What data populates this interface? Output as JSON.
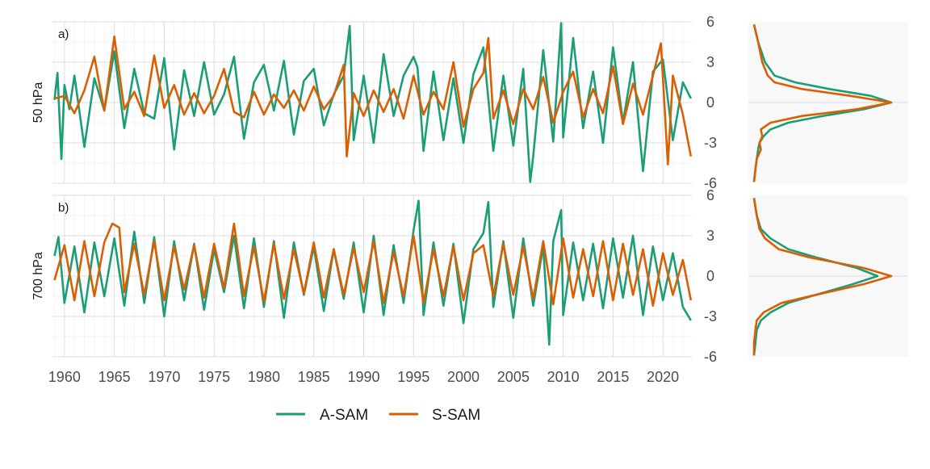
{
  "chart_data": {
    "type": "line",
    "panels": [
      {
        "tag": "a)",
        "ylabel": "50 hPa",
        "ylim": [
          -6,
          6
        ],
        "yticks": [
          "6",
          "3",
          "0",
          "-3",
          "-6"
        ],
        "series": [
          {
            "name": "A-SAM",
            "color": "#1b9e77",
            "x": [
              1959.0,
              1959.3,
              1959.7,
              1960.0,
              1960.5,
              1961.0,
              1962.0,
              1963.0,
              1964.0,
              1965.0,
              1966.0,
              1967.0,
              1968.0,
              1969.0,
              1970.0,
              1971.0,
              1972.0,
              1973.0,
              1974.0,
              1975.0,
              1976.0,
              1977.0,
              1978.0,
              1979.0,
              1980.0,
              1981.0,
              1982.0,
              1983.0,
              1984.0,
              1985.0,
              1986.0,
              1987.0,
              1988.0,
              1988.6,
              1989.0,
              1990.0,
              1991.0,
              1992.0,
              1993.0,
              1994.0,
              1995.0,
              1995.4,
              1996.0,
              1997.0,
              1998.0,
              1999.0,
              2000.0,
              2001.0,
              2002.0,
              2003.0,
              2004.0,
              2005.0,
              2006.0,
              2006.7,
              2007.0,
              2008.0,
              2009.0,
              2009.8,
              2010.0,
              2011.0,
              2012.0,
              2013.0,
              2014.0,
              2015.0,
              2016.0,
              2017.0,
              2018.0,
              2019.0,
              2020.0,
              2021.0,
              2022.0,
              2022.8
            ],
            "y": [
              0.2,
              2.2,
              -4.2,
              1.3,
              -0.5,
              2.0,
              -3.3,
              1.8,
              -0.6,
              3.8,
              -1.9,
              2.5,
              -0.8,
              -1.2,
              3.3,
              -3.5,
              2.4,
              -1.0,
              3.0,
              -0.9,
              0.6,
              3.4,
              -2.7,
              1.5,
              2.8,
              -0.6,
              3.1,
              -2.4,
              1.6,
              2.5,
              -1.7,
              0.6,
              2.0,
              5.7,
              -2.8,
              2.0,
              -3.0,
              3.6,
              -1.0,
              2.0,
              3.4,
              2.6,
              -3.6,
              2.3,
              -2.8,
              1.8,
              -3.0,
              2.1,
              4.1,
              -3.6,
              2.0,
              -3.2,
              2.5,
              -5.9,
              -4.0,
              3.9,
              -2.9,
              5.9,
              -2.6,
              4.8,
              -1.9,
              2.3,
              -3.0,
              4.1,
              -1.5,
              3.0,
              -5.1,
              2.3,
              3.2,
              -2.8,
              1.5,
              0.3
            ]
          },
          {
            "name": "S-SAM",
            "color": "#d95f02",
            "x": [
              1959.0,
              1960.0,
              1961.0,
              1962.0,
              1963.0,
              1964.0,
              1965.0,
              1966.0,
              1967.0,
              1968.0,
              1969.0,
              1970.0,
              1971.0,
              1972.0,
              1973.0,
              1974.0,
              1975.0,
              1976.0,
              1977.0,
              1978.0,
              1979.0,
              1980.0,
              1981.0,
              1982.0,
              1983.0,
              1984.0,
              1985.0,
              1986.0,
              1987.0,
              1988.0,
              1988.3,
              1989.0,
              1990.0,
              1991.0,
              1992.0,
              1993.0,
              1994.0,
              1995.0,
              1996.0,
              1997.0,
              1998.0,
              1999.0,
              2000.0,
              2001.0,
              2002.0,
              2002.5,
              2003.0,
              2004.0,
              2005.0,
              2006.0,
              2007.0,
              2008.0,
              2009.0,
              2010.0,
              2011.0,
              2012.0,
              2013.0,
              2014.0,
              2015.0,
              2016.0,
              2017.0,
              2018.0,
              2019.0,
              2019.8,
              2020.5,
              2021.0,
              2022.0,
              2022.8
            ],
            "y": [
              0.3,
              0.5,
              -0.8,
              0.9,
              3.4,
              -0.6,
              4.9,
              -0.5,
              0.8,
              -1.0,
              3.5,
              -0.4,
              1.3,
              -0.9,
              0.7,
              -0.8,
              0.5,
              2.5,
              -0.7,
              -1.1,
              0.8,
              -0.9,
              0.6,
              -0.4,
              0.9,
              -0.6,
              1.2,
              -0.5,
              0.5,
              2.8,
              -4.0,
              0.7,
              -1.0,
              0.9,
              -0.7,
              1.0,
              -1.2,
              2.0,
              -0.9,
              0.8,
              -0.5,
              3.0,
              -1.8,
              1.0,
              2.2,
              4.8,
              -1.2,
              0.9,
              -1.6,
              1.0,
              -0.5,
              1.9,
              -1.5,
              0.8,
              2.3,
              -1.1,
              1.0,
              -0.8,
              2.7,
              -1.6,
              1.4,
              -0.9,
              2.0,
              4.4,
              -4.6,
              2.0,
              -0.9,
              -4.0
            ]
          }
        ],
        "density": [
          {
            "name": "A-SAM",
            "x": [
              0.0,
              0.03,
              0.08,
              0.15,
              0.3,
              0.55,
              0.85,
              1.0,
              0.8,
              0.5,
              0.25,
              0.12,
              0.07,
              0.04,
              0.03,
              0.02,
              0.01,
              0.0
            ],
            "y": [
              5.8,
              4.5,
              3.0,
              2.0,
              1.5,
              1.0,
              0.5,
              0.0,
              -0.5,
              -1.0,
              -1.5,
              -2.0,
              -2.5,
              -3.0,
              -3.5,
              -4.2,
              -5.0,
              -5.9
            ]
          },
          {
            "name": "S-SAM",
            "x": [
              0.0,
              0.03,
              0.06,
              0.1,
              0.15,
              0.35,
              0.7,
              1.0,
              0.75,
              0.35,
              0.12,
              0.05,
              0.06,
              0.04,
              0.05,
              0.02,
              0.01,
              0.0
            ],
            "y": [
              5.8,
              4.5,
              3.0,
              2.0,
              1.5,
              1.0,
              0.5,
              0.0,
              -0.5,
              -1.0,
              -1.5,
              -2.0,
              -2.5,
              -3.0,
              -3.5,
              -4.2,
              -5.0,
              -5.9
            ]
          }
        ]
      },
      {
        "tag": "b)",
        "ylabel": "700 hPa",
        "ylim": [
          -6,
          6
        ],
        "yticks": [
          "6",
          "3",
          "0",
          "-3",
          "-6"
        ],
        "series": [
          {
            "name": "A-SAM",
            "color": "#1b9e77",
            "x": [
              1959.0,
              1959.4,
              1960.0,
              1961.0,
              1962.0,
              1963.0,
              1964.0,
              1965.0,
              1966.0,
              1967.0,
              1968.0,
              1969.0,
              1970.0,
              1971.0,
              1972.0,
              1973.0,
              1974.0,
              1975.0,
              1976.0,
              1977.0,
              1978.0,
              1979.0,
              1980.0,
              1981.0,
              1982.0,
              1983.0,
              1984.0,
              1985.0,
              1986.0,
              1987.0,
              1988.0,
              1989.0,
              1990.0,
              1991.0,
              1992.0,
              1993.0,
              1994.0,
              1995.0,
              1995.5,
              1996.0,
              1997.0,
              1998.0,
              1999.0,
              2000.0,
              2001.0,
              2002.0,
              2002.5,
              2003.0,
              2004.0,
              2005.0,
              2006.0,
              2007.0,
              2008.0,
              2008.6,
              2009.0,
              2009.8,
              2010.0,
              2011.0,
              2012.0,
              2013.0,
              2014.0,
              2015.0,
              2016.0,
              2017.0,
              2018.0,
              2019.0,
              2020.0,
              2021.0,
              2022.0,
              2022.8
            ],
            "y": [
              1.5,
              2.9,
              -2.0,
              2.2,
              -2.7,
              2.5,
              -1.5,
              2.8,
              -2.2,
              3.3,
              -2.0,
              2.9,
              -3.0,
              2.6,
              -1.8,
              2.4,
              -2.5,
              2.0,
              -1.2,
              3.0,
              -2.4,
              2.8,
              -2.3,
              2.6,
              -3.1,
              2.5,
              -1.4,
              2.2,
              -2.6,
              2.0,
              -1.7,
              2.5,
              -2.7,
              3.0,
              -2.9,
              2.3,
              -2.0,
              3.4,
              5.6,
              -2.9,
              2.5,
              -2.2,
              2.4,
              -3.5,
              2.0,
              3.2,
              5.5,
              -2.3,
              2.6,
              -3.1,
              2.8,
              -2.2,
              2.2,
              -5.1,
              2.6,
              4.9,
              -2.9,
              2.5,
              -1.8,
              2.4,
              -2.4,
              2.8,
              -1.6,
              3.0,
              -2.9,
              2.2,
              -1.8,
              1.7,
              -2.3,
              -3.3
            ]
          },
          {
            "name": "S-SAM",
            "color": "#d95f02",
            "x": [
              1959.0,
              1960.0,
              1961.0,
              1962.0,
              1963.0,
              1964.0,
              1964.8,
              1965.5,
              1966.0,
              1967.0,
              1968.0,
              1969.0,
              1970.0,
              1971.0,
              1972.0,
              1973.0,
              1974.0,
              1975.0,
              1976.0,
              1977.0,
              1978.0,
              1979.0,
              1980.0,
              1981.0,
              1982.0,
              1983.0,
              1984.0,
              1985.0,
              1986.0,
              1987.0,
              1988.0,
              1989.0,
              1990.0,
              1991.0,
              1992.0,
              1993.0,
              1994.0,
              1995.0,
              1996.0,
              1997.0,
              1998.0,
              1999.0,
              2000.0,
              2001.0,
              2002.0,
              2003.0,
              2004.0,
              2005.0,
              2006.0,
              2007.0,
              2008.0,
              2009.0,
              2010.0,
              2011.0,
              2012.0,
              2013.0,
              2014.0,
              2015.0,
              2016.0,
              2017.0,
              2018.0,
              2019.0,
              2020.0,
              2021.0,
              2022.0,
              2022.8
            ],
            "y": [
              -0.3,
              2.3,
              -1.8,
              2.6,
              -1.5,
              2.5,
              3.9,
              3.6,
              -1.2,
              2.4,
              -1.4,
              2.6,
              -1.8,
              2.2,
              -1.0,
              2.3,
              -1.6,
              2.4,
              -0.9,
              3.9,
              -1.5,
              2.2,
              -1.9,
              2.4,
              -1.7,
              2.0,
              -1.3,
              2.5,
              -1.6,
              2.0,
              -1.4,
              2.1,
              -1.2,
              2.6,
              -2.0,
              1.8,
              -1.5,
              3.0,
              -2.0,
              2.0,
              -1.5,
              2.2,
              -1.8,
              1.7,
              2.3,
              -1.5,
              2.4,
              -1.4,
              2.2,
              -1.7,
              2.6,
              -2.1,
              2.8,
              -1.6,
              2.0,
              -1.5,
              2.6,
              -1.8,
              2.4,
              -1.4,
              2.0,
              -2.2,
              1.7,
              -1.4,
              1.2,
              -1.8
            ]
          }
        ],
        "density": [
          {
            "name": "A-SAM",
            "x": [
              0.0,
              0.02,
              0.05,
              0.12,
              0.25,
              0.45,
              0.75,
              0.9,
              0.72,
              0.45,
              0.25,
              0.12,
              0.05,
              0.02,
              0.01,
              0.0
            ],
            "y": [
              5.8,
              4.5,
              3.5,
              2.8,
              2.0,
              1.4,
              0.6,
              0.0,
              -0.6,
              -1.4,
              -2.0,
              -2.7,
              -3.3,
              -4.0,
              -5.0,
              -5.9
            ]
          },
          {
            "name": "S-SAM",
            "x": [
              0.0,
              0.02,
              0.04,
              0.08,
              0.18,
              0.4,
              0.8,
              1.0,
              0.8,
              0.45,
              0.2,
              0.07,
              0.02,
              0.01,
              0.0,
              0.0
            ],
            "y": [
              5.8,
              4.5,
              3.5,
              2.8,
              2.0,
              1.4,
              0.6,
              0.0,
              -0.6,
              -1.4,
              -2.0,
              -2.7,
              -3.3,
              -4.0,
              -5.0,
              -5.9
            ]
          }
        ]
      }
    ],
    "x_axis": {
      "xlim": [
        1958.8,
        2022.9
      ],
      "ticks": [
        1960,
        1965,
        1970,
        1975,
        1980,
        1985,
        1990,
        1995,
        2000,
        2005,
        2010,
        2015,
        2020
      ],
      "tick_labels": [
        "1960",
        "1965",
        "1970",
        "1975",
        "1980",
        "1985",
        "1990",
        "1995",
        "2000",
        "2005",
        "2010",
        "2015",
        "2020"
      ]
    },
    "legend": {
      "position": "bottom",
      "items": [
        {
          "name": "A-SAM",
          "color": "#1b9e77"
        },
        {
          "name": "S-SAM",
          "color": "#d95f02"
        }
      ]
    },
    "grid": true
  }
}
